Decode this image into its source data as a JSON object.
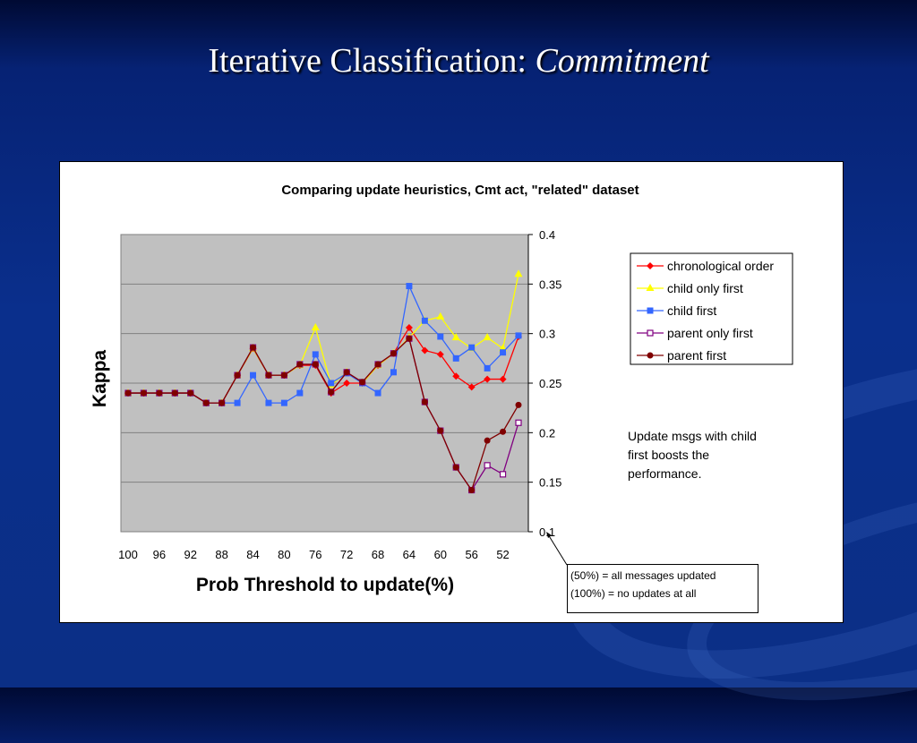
{
  "slide": {
    "title_plain": "Iterative Classification: ",
    "title_italic": "Commitment"
  },
  "annotation": {
    "line1": "Update msgs with child",
    "line2": "first boosts the",
    "line3": "performance."
  },
  "note_box": {
    "line1": "(50%) = all messages updated",
    "line2": "(100%) = no updates at all"
  },
  "colors": {
    "plot_bg": "#c0c0c0",
    "chronological order": "#ff0000",
    "child only first": "#ffff00",
    "child first": "#3366ff",
    "parent only first": "#800080",
    "parent first": "#800000"
  },
  "chart_data": {
    "type": "line",
    "title": "Comparing update heuristics, Cmt act, \"related\" dataset",
    "xlabel": "Prob Threshold to update(%)",
    "ylabel": "Kappa",
    "ylim": [
      0.1,
      0.4
    ],
    "y_ticks": [
      "0.4",
      "0.35",
      "0.3",
      "0.25",
      "0.2",
      "0.15",
      "0.1"
    ],
    "y_axis_position": "right",
    "grid": true,
    "legend": "right",
    "x": [
      100,
      98,
      96,
      94,
      92,
      90,
      88,
      86,
      84,
      82,
      80,
      78,
      76,
      74,
      72,
      70,
      68,
      66,
      64,
      62,
      60,
      58,
      56,
      54,
      52,
      50
    ],
    "x_tick_labels": [
      "100",
      "96",
      "92",
      "88",
      "84",
      "80",
      "76",
      "72",
      "68",
      "64",
      "60",
      "56",
      "52"
    ],
    "series": [
      {
        "name": "chronological order",
        "marker": "diamond",
        "values": [
          0.24,
          0.24,
          0.24,
          0.24,
          0.24,
          0.23,
          0.23,
          0.258,
          0.285,
          0.258,
          0.258,
          0.268,
          0.268,
          0.24,
          0.25,
          0.25,
          0.268,
          0.28,
          0.306,
          0.283,
          0.279,
          0.257,
          0.246,
          0.254,
          0.254,
          0.297
        ]
      },
      {
        "name": "child only first",
        "marker": "triangle",
        "values": [
          0.24,
          0.24,
          0.24,
          0.24,
          0.24,
          0.23,
          0.23,
          0.258,
          0.285,
          0.258,
          0.258,
          0.268,
          0.306,
          0.248,
          0.261,
          0.25,
          0.268,
          0.28,
          0.296,
          0.313,
          0.317,
          0.296,
          0.285,
          0.296,
          0.285,
          0.36
        ]
      },
      {
        "name": "child first",
        "marker": "square",
        "values": [
          0.24,
          0.24,
          0.24,
          0.24,
          0.24,
          0.23,
          0.23,
          0.23,
          0.258,
          0.23,
          0.23,
          0.24,
          0.279,
          0.25,
          0.26,
          0.25,
          0.24,
          0.261,
          0.348,
          0.313,
          0.297,
          0.275,
          0.286,
          0.265,
          0.281,
          0.298
        ]
      },
      {
        "name": "parent only first",
        "marker": "open-square",
        "values": [
          0.24,
          0.24,
          0.24,
          0.24,
          0.24,
          0.23,
          0.23,
          0.258,
          0.286,
          0.258,
          0.258,
          0.269,
          0.269,
          0.241,
          0.261,
          0.251,
          0.269,
          0.28,
          0.295,
          0.231,
          0.202,
          0.165,
          0.142,
          0.167,
          0.158,
          0.21
        ]
      },
      {
        "name": "parent first",
        "marker": "circle",
        "values": [
          0.24,
          0.24,
          0.24,
          0.24,
          0.24,
          0.23,
          0.23,
          0.258,
          0.286,
          0.258,
          0.258,
          0.269,
          0.269,
          0.241,
          0.261,
          0.251,
          0.269,
          0.28,
          0.295,
          0.231,
          0.202,
          0.165,
          0.142,
          0.192,
          0.201,
          0.228
        ]
      }
    ]
  }
}
